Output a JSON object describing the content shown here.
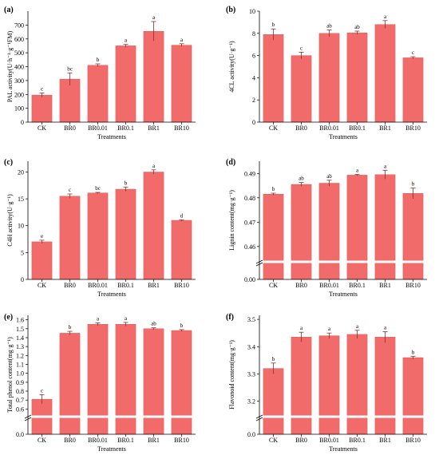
{
  "colors": {
    "bar": "#f26b6b",
    "bar_edge": "#d94848",
    "error": "#8a2d2d",
    "break_mark": "#ffffff",
    "axis": "#000000"
  },
  "chart_data": [
    {
      "panel": "(a)",
      "type": "bar",
      "categories": [
        "CK",
        "BR0",
        "BR0.01",
        "BR0.1",
        "BR1",
        "BR10"
      ],
      "values": [
        195,
        310,
        410,
        550,
        655,
        555
      ],
      "errors": [
        15,
        45,
        10,
        10,
        70,
        10
      ],
      "significance": [
        "c",
        "bc",
        "b",
        "a",
        "a",
        "a"
      ],
      "ylabel": "PAL activity(U·h⁻¹·g⁻¹FM)",
      "xlabel": "Treatments",
      "ylim": [
        0,
        800
      ],
      "yticks": [
        0,
        100,
        200,
        300,
        400,
        500,
        600,
        700
      ]
    },
    {
      "panel": "(b)",
      "type": "bar",
      "categories": [
        "CK",
        "BR0",
        "BR0.01",
        "BR0.1",
        "BR1",
        "BR10"
      ],
      "values": [
        7.9,
        6.0,
        8.0,
        8.05,
        8.8,
        5.8
      ],
      "errors": [
        0.5,
        0.3,
        0.3,
        0.15,
        0.35,
        0.1
      ],
      "significance": [
        "b",
        "c",
        "ab",
        "ab",
        "a",
        "c"
      ],
      "ylabel": "4CL activity(U·g⁻¹)",
      "xlabel": "Treatments",
      "ylim": [
        0,
        10
      ],
      "yticks": [
        0,
        2,
        4,
        6,
        8,
        10
      ]
    },
    {
      "panel": "(c)",
      "type": "bar",
      "categories": [
        "CK",
        "BR0",
        "BR0.01",
        "BR0.1",
        "BR1",
        "BR10"
      ],
      "values": [
        7.0,
        15.5,
        16.1,
        16.8,
        20.0,
        11.0
      ],
      "errors": [
        0.3,
        0.4,
        0.1,
        0.4,
        0.4,
        0.1
      ],
      "significance": [
        "e",
        "c",
        "bc",
        "b",
        "a",
        "d"
      ],
      "ylabel": "C4H activity(U·g⁻¹)",
      "xlabel": "Treatments",
      "ylim": [
        0,
        22
      ],
      "yticks": [
        0,
        5,
        10,
        15,
        20
      ]
    },
    {
      "panel": "(d)",
      "type": "bar",
      "categories": [
        "CK",
        "BR0",
        "BR0.01",
        "BR0.1",
        "BR1",
        "BR10"
      ],
      "values": [
        0.4815,
        0.4855,
        0.486,
        0.4893,
        0.4895,
        0.4818
      ],
      "errors": [
        0.0004,
        0.0008,
        0.0012,
        0.0003,
        0.0018,
        0.0022
      ],
      "significance": [
        "b",
        "ab",
        "ab",
        "a",
        "a",
        "b"
      ],
      "ylabel": "Lignin content(mg·g⁻¹)",
      "xlabel": "Treatments",
      "axis_break": true,
      "ytick_labels": [
        "0.00",
        "0.46",
        "0.47",
        "0.48",
        "0.49"
      ],
      "upper_range": [
        0.455,
        0.495
      ]
    },
    {
      "panel": "(e)",
      "type": "bar",
      "categories": [
        "CK",
        "BR0",
        "BR0.01",
        "BR0.1",
        "BR1",
        "BR10"
      ],
      "values": [
        0.71,
        1.45,
        1.55,
        1.55,
        1.5,
        1.48
      ],
      "errors": [
        0.05,
        0.02,
        0.015,
        0.02,
        0.01,
        0.01
      ],
      "significance": [
        "c",
        "b",
        "a",
        "a",
        "ab",
        "b"
      ],
      "ylabel": "Total phenol content(mg·g⁻¹)",
      "xlabel": "Treatments",
      "axis_break": true,
      "ytick_labels": [
        "0.0",
        "0.6",
        "0.7",
        "0.8",
        "0.9",
        "1.0",
        "1.1",
        "1.2",
        "1.3",
        "1.4",
        "1.5",
        "1.6"
      ],
      "upper_range": [
        0.55,
        1.65
      ]
    },
    {
      "panel": "(f)",
      "type": "bar",
      "categories": [
        "CK",
        "BR0",
        "BR0.01",
        "BR0.1",
        "BR1",
        "BR10"
      ],
      "values": [
        3.32,
        3.435,
        3.44,
        3.445,
        3.435,
        3.36
      ],
      "errors": [
        0.02,
        0.018,
        0.01,
        0.015,
        0.02,
        0.005
      ],
      "significance": [
        "b",
        "a",
        "a",
        "a",
        "a",
        "b"
      ],
      "ylabel": "Flavonoid content(mg·g⁻¹)",
      "xlabel": "Treatments",
      "axis_break": true,
      "ytick_labels": [
        "0.0",
        "3.2",
        "3.3",
        "3.4",
        "3.5"
      ],
      "upper_range": [
        3.155,
        3.515
      ]
    }
  ]
}
